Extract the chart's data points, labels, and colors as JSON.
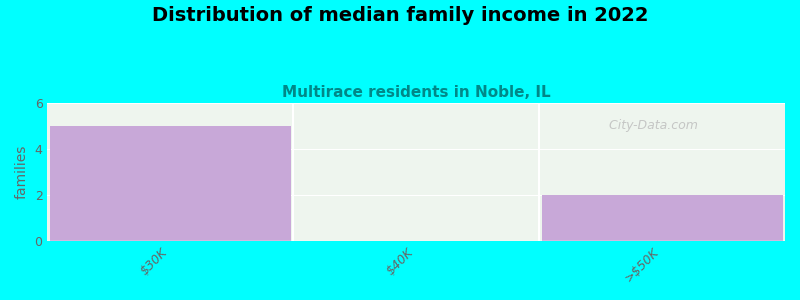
{
  "title": "Distribution of median family income in 2022",
  "subtitle": "Multirace residents in Noble, IL",
  "categories": [
    "$30K",
    "$40K",
    ">$50K"
  ],
  "values": [
    5,
    0,
    2
  ],
  "bar_color": "#c8a8d8",
  "bg_color": "#00ffff",
  "plot_bg_color": "#eef5ee",
  "ylabel": "families",
  "ylim": [
    0,
    6
  ],
  "yticks": [
    0,
    2,
    4,
    6
  ],
  "title_fontsize": 14,
  "subtitle_fontsize": 11,
  "subtitle_color": "#008888",
  "bar_width": 0.98,
  "watermark": "  City-Data.com"
}
